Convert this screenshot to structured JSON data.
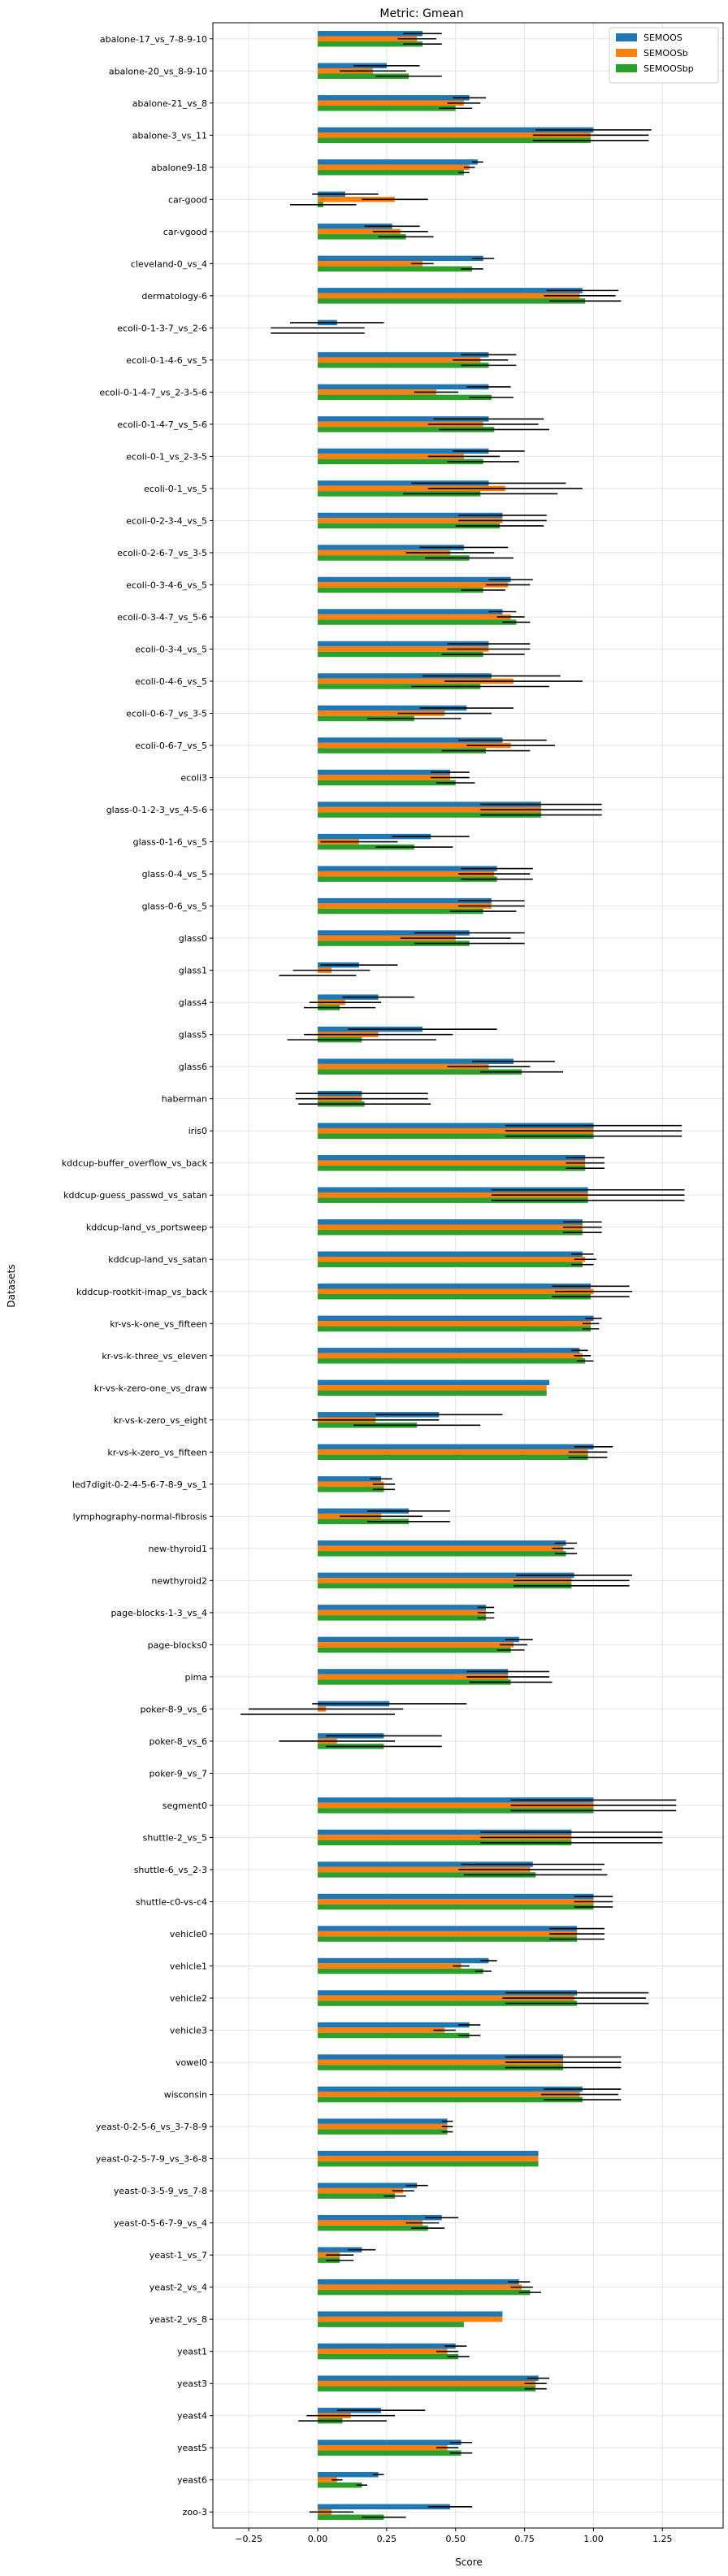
{
  "chart_data": {
    "type": "bar",
    "orientation": "horizontal",
    "title": "Metric: Gmean",
    "xlabel": "Score",
    "ylabel": "Datasets",
    "xlim": [
      -0.38,
      1.47
    ],
    "xticks": [
      -0.25,
      0.0,
      0.25,
      0.5,
      0.75,
      1.0,
      1.25
    ],
    "xtick_labels": [
      "−0.25",
      "0.00",
      "0.25",
      "0.50",
      "0.75",
      "1.00",
      "1.25"
    ],
    "grid": true,
    "legend_position": "top-right",
    "series_colors": [
      "#1f77b4",
      "#ff7f0e",
      "#2ca02c"
    ],
    "error_bar_color": "#000000",
    "categories": [
      "abalone-17_vs_7-8-9-10",
      "abalone-20_vs_8-9-10",
      "abalone-21_vs_8",
      "abalone-3_vs_11",
      "abalone9-18",
      "car-good",
      "car-vgood",
      "cleveland-0_vs_4",
      "dermatology-6",
      "ecoli-0-1-3-7_vs_2-6",
      "ecoli-0-1-4-6_vs_5",
      "ecoli-0-1-4-7_vs_2-3-5-6",
      "ecoli-0-1-4-7_vs_5-6",
      "ecoli-0-1_vs_2-3-5",
      "ecoli-0-1_vs_5",
      "ecoli-0-2-3-4_vs_5",
      "ecoli-0-2-6-7_vs_3-5",
      "ecoli-0-3-4-6_vs_5",
      "ecoli-0-3-4-7_vs_5-6",
      "ecoli-0-3-4_vs_5",
      "ecoli-0-4-6_vs_5",
      "ecoli-0-6-7_vs_3-5",
      "ecoli-0-6-7_vs_5",
      "ecoli3",
      "glass-0-1-2-3_vs_4-5-6",
      "glass-0-1-6_vs_5",
      "glass-0-4_vs_5",
      "glass-0-6_vs_5",
      "glass0",
      "glass1",
      "glass4",
      "glass5",
      "glass6",
      "haberman",
      "iris0",
      "kddcup-buffer_overflow_vs_back",
      "kddcup-guess_passwd_vs_satan",
      "kddcup-land_vs_portsweep",
      "kddcup-land_vs_satan",
      "kddcup-rootkit-imap_vs_back",
      "kr-vs-k-one_vs_fifteen",
      "kr-vs-k-three_vs_eleven",
      "kr-vs-k-zero-one_vs_draw",
      "kr-vs-k-zero_vs_eight",
      "kr-vs-k-zero_vs_fifteen",
      "led7digit-0-2-4-5-6-7-8-9_vs_1",
      "lymphography-normal-fibrosis",
      "new-thyroid1",
      "newthyroid2",
      "page-blocks-1-3_vs_4",
      "page-blocks0",
      "pima",
      "poker-8-9_vs_6",
      "poker-8_vs_6",
      "poker-9_vs_7",
      "segment0",
      "shuttle-2_vs_5",
      "shuttle-6_vs_2-3",
      "shuttle-c0-vs-c4",
      "vehicle0",
      "vehicle1",
      "vehicle2",
      "vehicle3",
      "vowel0",
      "wisconsin",
      "yeast-0-2-5-6_vs_3-7-8-9",
      "yeast-0-2-5-7-9_vs_3-6-8",
      "yeast-0-3-5-9_vs_7-8",
      "yeast-0-5-6-7-9_vs_4",
      "yeast-1_vs_7",
      "yeast-2_vs_4",
      "yeast-2_vs_8",
      "yeast1",
      "yeast3",
      "yeast4",
      "yeast5",
      "yeast6",
      "zoo-3"
    ],
    "series": [
      {
        "name": "SEMOOS",
        "values": [
          0.38,
          0.25,
          0.55,
          1.0,
          0.58,
          0.1,
          0.27,
          0.6,
          0.96,
          0.07,
          0.62,
          0.62,
          0.62,
          0.62,
          0.62,
          0.67,
          0.53,
          0.7,
          0.67,
          0.62,
          0.63,
          0.54,
          0.67,
          0.48,
          0.81,
          0.41,
          0.65,
          0.63,
          0.55,
          0.15,
          0.22,
          0.38,
          0.71,
          0.16,
          1.0,
          0.97,
          0.98,
          0.96,
          0.96,
          0.99,
          1.0,
          0.95,
          0.84,
          0.44,
          1.0,
          0.23,
          0.33,
          0.9,
          0.93,
          0.61,
          0.73,
          0.69,
          0.26,
          0.24,
          0.0,
          1.0,
          0.92,
          0.78,
          1.0,
          0.94,
          0.62,
          0.94,
          0.55,
          0.89,
          0.96,
          0.47,
          0.8,
          0.36,
          0.45,
          0.16,
          0.73,
          0.67,
          0.5,
          0.8,
          0.23,
          0.52,
          0.22,
          0.48
        ],
        "errors": [
          0.07,
          0.12,
          0.06,
          0.21,
          0.02,
          0.12,
          0.1,
          0.04,
          0.13,
          0.17,
          0.1,
          0.08,
          0.2,
          0.13,
          0.28,
          0.16,
          0.16,
          0.08,
          0.05,
          0.15,
          0.25,
          0.17,
          0.16,
          0.07,
          0.22,
          0.14,
          0.13,
          0.12,
          0.2,
          0.14,
          0.13,
          0.27,
          0.15,
          0.24,
          0.32,
          0.07,
          0.35,
          0.07,
          0.04,
          0.14,
          0.03,
          0.03,
          0.0,
          0.23,
          0.07,
          0.04,
          0.15,
          0.04,
          0.21,
          0.03,
          0.05,
          0.15,
          0.28,
          0.21,
          0.0,
          0.3,
          0.33,
          0.26,
          0.07,
          0.1,
          0.03,
          0.26,
          0.04,
          0.21,
          0.14,
          0.02,
          0.0,
          0.04,
          0.06,
          0.05,
          0.04,
          0.0,
          0.04,
          0.04,
          0.16,
          0.04,
          0.02,
          0.08
        ]
      },
      {
        "name": "SEMOOSb",
        "values": [
          0.36,
          0.2,
          0.53,
          0.99,
          0.55,
          0.28,
          0.3,
          0.38,
          0.95,
          0.0,
          0.59,
          0.43,
          0.6,
          0.53,
          0.68,
          0.67,
          0.48,
          0.69,
          0.7,
          0.62,
          0.71,
          0.46,
          0.7,
          0.48,
          0.81,
          0.15,
          0.64,
          0.63,
          0.5,
          0.05,
          0.1,
          0.22,
          0.62,
          0.16,
          1.0,
          0.97,
          0.98,
          0.96,
          0.97,
          1.0,
          0.99,
          0.96,
          0.83,
          0.21,
          0.98,
          0.24,
          0.23,
          0.89,
          0.92,
          0.61,
          0.71,
          0.69,
          0.03,
          0.07,
          0.0,
          1.0,
          0.92,
          0.77,
          1.0,
          0.94,
          0.52,
          0.93,
          0.46,
          0.89,
          0.95,
          0.47,
          0.8,
          0.31,
          0.38,
          0.08,
          0.74,
          0.67,
          0.47,
          0.79,
          0.12,
          0.47,
          0.07,
          0.05
        ]
      },
      {
        "name": "SEMOOSbp",
        "values": [
          0.38,
          0.33,
          0.5,
          0.99,
          0.53,
          0.02,
          0.32,
          0.56,
          0.97,
          0.0,
          0.62,
          0.63,
          0.64,
          0.6,
          0.59,
          0.66,
          0.55,
          0.6,
          0.72,
          0.6,
          0.59,
          0.35,
          0.61,
          0.5,
          0.81,
          0.35,
          0.65,
          0.6,
          0.55,
          0.0,
          0.08,
          0.16,
          0.74,
          0.17,
          1.0,
          0.97,
          0.98,
          0.96,
          0.96,
          0.99,
          0.99,
          0.97,
          0.83,
          0.36,
          0.98,
          0.24,
          0.33,
          0.9,
          0.92,
          0.61,
          0.7,
          0.7,
          0.0,
          0.24,
          0.0,
          1.0,
          0.92,
          0.79,
          1.0,
          0.94,
          0.6,
          0.94,
          0.55,
          0.89,
          0.96,
          0.47,
          0.8,
          0.28,
          0.4,
          0.08,
          0.77,
          0.53,
          0.51,
          0.79,
          0.09,
          0.52,
          0.16,
          0.24
        ]
      }
    ]
  }
}
